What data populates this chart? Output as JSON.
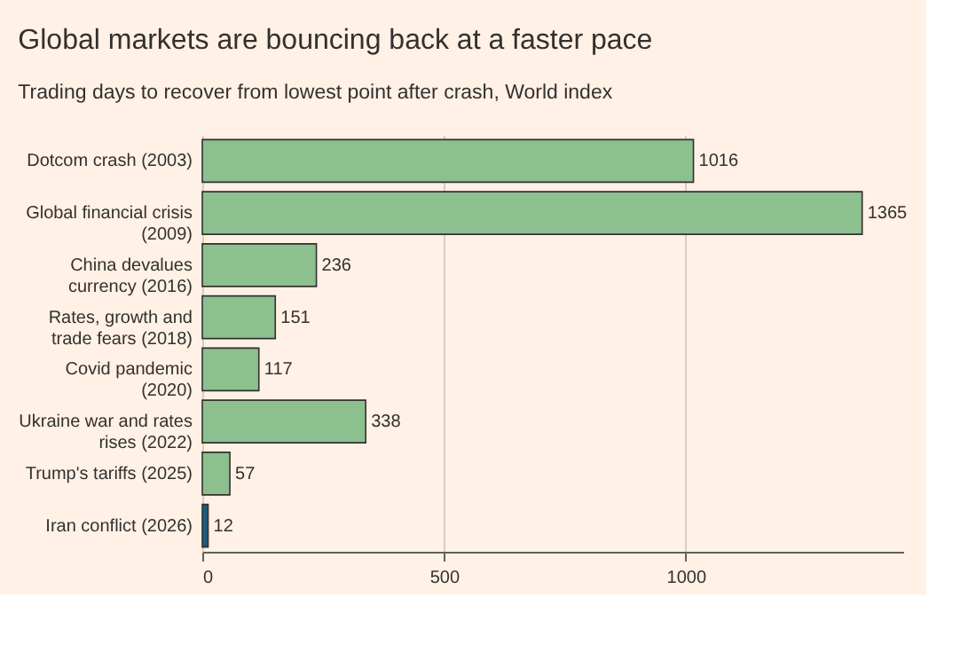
{
  "chart_data": {
    "type": "bar",
    "orientation": "horizontal",
    "title": "Global markets are bouncing back at a faster pace",
    "subtitle": "Trading days to recover from lowest point after crash, World index",
    "categories": [
      "Dotcom crash (2003)",
      "Global financial crisis\n(2009)",
      "China devalues\ncurrency (2016)",
      "Rates, growth and\ntrade fears (2018)",
      "Covid pandemic\n(2020)",
      "Ukraine war and rates\nrises (2022)",
      "Trump's tariffs (2025)",
      "Iran conflict (2026)"
    ],
    "values": [
      1016,
      1365,
      236,
      151,
      117,
      338,
      57,
      12
    ],
    "colors": [
      "#8cc08f",
      "#8cc08f",
      "#8cc08f",
      "#8cc08f",
      "#8cc08f",
      "#8cc08f",
      "#8cc08f",
      "#1d5b7e"
    ],
    "xlim": [
      0,
      1450
    ],
    "xticks": [
      0,
      500,
      1000
    ],
    "grid": "x",
    "data_labels": true
  }
}
